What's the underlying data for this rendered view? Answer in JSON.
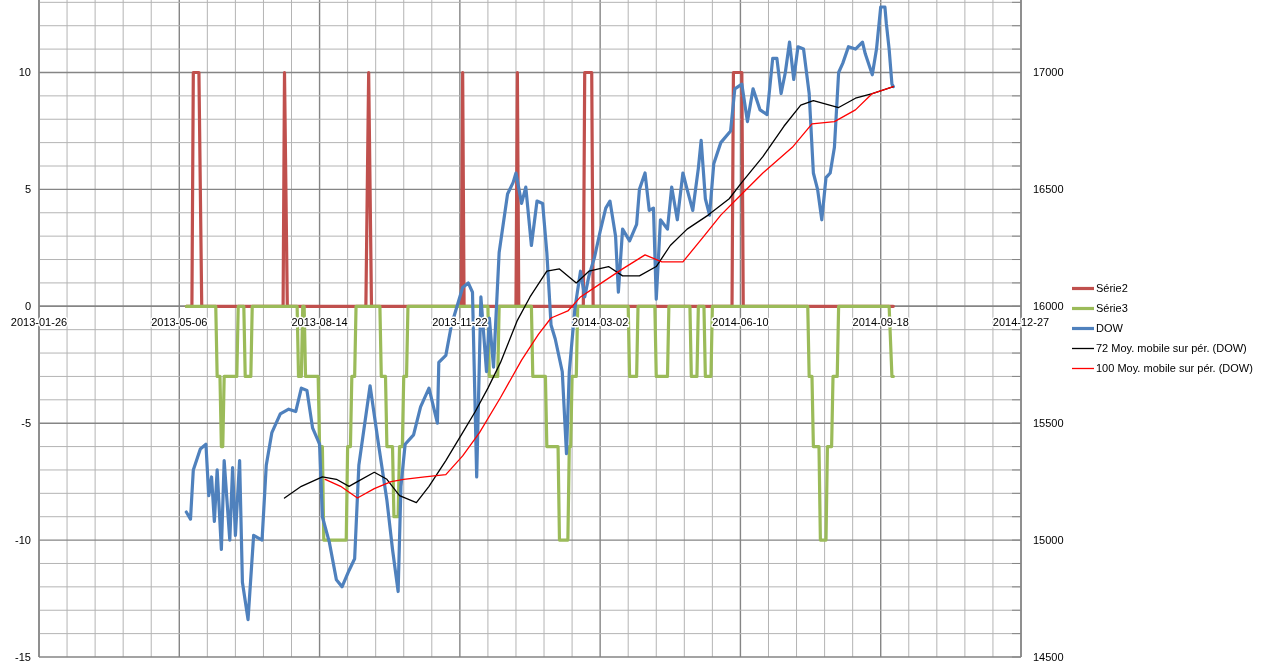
{
  "chart_data": {
    "type": "line",
    "xlim": [
      "2013-01-26",
      "2014-12-27"
    ],
    "xticks": [
      "2013-01-26",
      {
        "value": "2013-02-15",
        "label": null
      },
      {
        "value": "2013-03-07",
        "label": null
      },
      {
        "value": "2013-03-27",
        "label": null
      },
      {
        "value": "2013-04-16",
        "label": null
      },
      "2013-05-06",
      {
        "value": "2013-05-26",
        "label": null
      },
      {
        "value": "2013-06-15",
        "label": null
      },
      {
        "value": "2013-07-05",
        "label": null
      },
      {
        "value": "2013-07-25",
        "label": null
      },
      "2013-08-14",
      {
        "value": "2013-09-03",
        "label": null
      },
      {
        "value": "2013-09-23",
        "label": null
      },
      {
        "value": "2013-10-13",
        "label": null
      },
      {
        "value": "2013-11-02",
        "label": null
      },
      "2013-11-22",
      {
        "value": "2013-12-12",
        "label": null
      },
      {
        "value": "2014-01-01",
        "label": null
      },
      {
        "value": "2014-01-21",
        "label": null
      },
      {
        "value": "2014-02-10",
        "label": null
      },
      "2014-03-02",
      {
        "value": "2014-03-22",
        "label": null
      },
      {
        "value": "2014-04-11",
        "label": null
      },
      {
        "value": "2014-05-01",
        "label": null
      },
      {
        "value": "2014-05-21",
        "label": null
      },
      "2014-06-10",
      {
        "value": "2014-06-30",
        "label": null
      },
      {
        "value": "2014-07-20",
        "label": null
      },
      {
        "value": "2014-08-09",
        "label": null
      },
      {
        "value": "2014-08-29",
        "label": null
      },
      "2014-09-18",
      {
        "value": "2014-10-08",
        "label": null
      },
      {
        "value": "2014-10-28",
        "label": null
      },
      {
        "value": "2014-11-17",
        "label": null
      },
      {
        "value": "2014-12-07",
        "label": null
      },
      "2014-12-27"
    ],
    "ylim": [
      -15,
      13.1
    ],
    "yticks": [
      -15,
      {
        "value": -14,
        "label": null
      },
      {
        "value": -13,
        "label": null
      },
      {
        "value": -12,
        "label": null
      },
      {
        "value": -11,
        "label": null
      },
      -10,
      {
        "value": -9,
        "label": null
      },
      {
        "value": -8,
        "label": null
      },
      {
        "value": -7,
        "label": null
      },
      {
        "value": -6,
        "label": null
      },
      -5,
      {
        "value": -4,
        "label": null
      },
      {
        "value": -3,
        "label": null
      },
      {
        "value": -2,
        "label": null
      },
      {
        "value": -1,
        "label": null
      },
      0,
      {
        "value": 1,
        "label": null
      },
      {
        "value": 2,
        "label": null
      },
      {
        "value": 3,
        "label": null
      },
      {
        "value": 4,
        "label": null
      },
      5,
      {
        "value": 6,
        "label": null
      },
      {
        "value": 7,
        "label": null
      },
      {
        "value": 8,
        "label": null
      },
      {
        "value": 9,
        "label": null
      },
      10,
      {
        "value": 11,
        "label": null
      },
      {
        "value": 12,
        "label": null
      },
      {
        "value": 13,
        "label": null
      }
    ],
    "y2lim": [
      14500,
      17310
    ],
    "y2ticks": [
      14500,
      {
        "value": 14600,
        "label": null
      },
      {
        "value": 14700,
        "label": null
      },
      {
        "value": 14800,
        "label": null
      },
      {
        "value": 14900,
        "label": null
      },
      15000,
      {
        "value": 15100,
        "label": null
      },
      {
        "value": 15200,
        "label": null
      },
      {
        "value": 15300,
        "label": null
      },
      {
        "value": 15400,
        "label": null
      },
      15500,
      {
        "value": 15600,
        "label": null
      },
      {
        "value": 15700,
        "label": null
      },
      {
        "value": 15800,
        "label": null
      },
      {
        "value": 15900,
        "label": null
      },
      16000,
      {
        "value": 16100,
        "label": null
      },
      {
        "value": 16200,
        "label": null
      },
      {
        "value": 16300,
        "label": null
      },
      {
        "value": 16400,
        "label": null
      },
      16500,
      {
        "value": 16600,
        "label": null
      },
      {
        "value": 16700,
        "label": null
      },
      {
        "value": 16800,
        "label": null
      },
      {
        "value": 16900,
        "label": null
      },
      17000,
      {
        "value": 17100,
        "label": null
      },
      {
        "value": 17200,
        "label": null
      },
      {
        "value": 17300,
        "label": null
      }
    ],
    "grid": true,
    "legend": "right",
    "series": [
      {
        "name": "Série2",
        "color": "#c0504d",
        "x": [
          "2013-05-11",
          "2013-05-15",
          "2013-05-16",
          "2013-05-20",
          "2013-05-22",
          "2013-07-19",
          "2013-07-20",
          "2013-07-22",
          "2013-09-16",
          "2013-09-18",
          "2013-09-20",
          "2013-11-23",
          "2013-11-24",
          "2013-11-25",
          "2014-01-01",
          "2014-01-02",
          "2014-01-03",
          "2014-02-18",
          "2014-02-19",
          "2014-02-24",
          "2014-02-25",
          "2014-06-04",
          "2014-06-05",
          "2014-06-11",
          "2014-06-12",
          "2014-09-27"
        ],
        "values": [
          0,
          0,
          10,
          10,
          0,
          0,
          10,
          0,
          0,
          10,
          0,
          0,
          10,
          0,
          0,
          10,
          0,
          0,
          10,
          10,
          0,
          0,
          10,
          10,
          0,
          0
        ]
      },
      {
        "name": "Série3",
        "color": "#9bbb59",
        "x": [
          "2013-05-11",
          "2013-06-01",
          "2013-06-02",
          "2013-06-04",
          "2013-06-05",
          "2013-06-06",
          "2013-06-07",
          "2013-06-16",
          "2013-06-17",
          "2013-06-21",
          "2013-06-22",
          "2013-06-26",
          "2013-06-27",
          "2013-07-29",
          "2013-07-30",
          "2013-08-01",
          "2013-08-02",
          "2013-08-03",
          "2013-08-04",
          "2013-08-13",
          "2013-08-14",
          "2013-08-16",
          "2013-08-17",
          "2013-09-02",
          "2013-09-03",
          "2013-09-05",
          "2013-09-06",
          "2013-09-08",
          "2013-09-09",
          "2013-09-26",
          "2013-09-27",
          "2013-09-30",
          "2013-10-01",
          "2013-10-05",
          "2013-10-06",
          "2013-10-09",
          "2013-10-10",
          "2013-10-12",
          "2013-10-13",
          "2013-10-15",
          "2013-10-16",
          "2013-12-12",
          "2013-12-13",
          "2013-12-19",
          "2013-12-20",
          "2014-01-12",
          "2014-01-13",
          "2014-01-22",
          "2014-01-23",
          "2014-01-31",
          "2014-02-01",
          "2014-02-07",
          "2014-02-08",
          "2014-02-09",
          "2014-02-10",
          "2014-02-13",
          "2014-02-14",
          "2014-03-22",
          "2014-03-23",
          "2014-03-28",
          "2014-03-29",
          "2014-04-10",
          "2014-04-11",
          "2014-04-19",
          "2014-04-20",
          "2014-05-05",
          "2014-05-06",
          "2014-05-10",
          "2014-05-11",
          "2014-05-15",
          "2014-05-16",
          "2014-05-20",
          "2014-05-21",
          "2014-07-28",
          "2014-07-29",
          "2014-07-31",
          "2014-08-01",
          "2014-08-05",
          "2014-08-06",
          "2014-08-10",
          "2014-08-11",
          "2014-08-14",
          "2014-08-15",
          "2014-08-18",
          "2014-08-19",
          "2014-09-24",
          "2014-09-26",
          "2014-09-27"
        ],
        "values": [
          0,
          0,
          -3,
          -3,
          -6,
          -6,
          -3,
          -3,
          0,
          0,
          -3,
          -3,
          0,
          0,
          -3,
          -3,
          0,
          0,
          -3,
          -3,
          -6,
          -6,
          -10,
          -10,
          -6,
          -6,
          -3,
          -3,
          0,
          0,
          -3,
          -3,
          -6,
          -6,
          -9,
          -9,
          -6,
          -6,
          -3,
          -3,
          0,
          0,
          -3,
          -3,
          0,
          0,
          -3,
          -3,
          -6,
          -6,
          -10,
          -10,
          -6,
          -6,
          -3,
          -3,
          0,
          0,
          -3,
          -3,
          0,
          0,
          -3,
          -3,
          0,
          0,
          -3,
          -3,
          0,
          0,
          -3,
          -3,
          0,
          0,
          -3,
          -3,
          -6,
          -6,
          -10,
          -10,
          -6,
          -6,
          -3,
          -3,
          0,
          0,
          -3,
          -3
        ]
      },
      {
        "name": "DOW",
        "color": "#4f81bd",
        "axis": "y2",
        "x": [
          "2013-05-11",
          "2013-05-14",
          "2013-05-16",
          "2013-05-21",
          "2013-05-25",
          "2013-05-27",
          "2013-05-29",
          "2013-05-31",
          "2013-06-02",
          "2013-06-05",
          "2013-06-07",
          "2013-06-11",
          "2013-06-13",
          "2013-06-15",
          "2013-06-18",
          "2013-06-20",
          "2013-06-24",
          "2013-06-28",
          "2013-07-04",
          "2013-07-07",
          "2013-07-11",
          "2013-07-17",
          "2013-07-23",
          "2013-07-28",
          "2013-08-01",
          "2013-08-05",
          "2013-08-09",
          "2013-08-14",
          "2013-08-16",
          "2013-08-21",
          "2013-08-26",
          "2013-08-30",
          "2013-09-04",
          "2013-09-08",
          "2013-09-11",
          "2013-09-19",
          "2013-09-25",
          "2013-10-01",
          "2013-10-05",
          "2013-10-09",
          "2013-10-11",
          "2013-10-14",
          "2013-10-20",
          "2013-10-25",
          "2013-10-31",
          "2013-11-06",
          "2013-11-07",
          "2013-11-12",
          "2013-11-16",
          "2013-11-24",
          "2013-11-28",
          "2013-12-01",
          "2013-12-04",
          "2013-12-07",
          "2013-12-11",
          "2013-12-13",
          "2013-12-16",
          "2013-12-20",
          "2013-12-26",
          "2013-12-30",
          "2014-01-01",
          "2014-01-05",
          "2014-01-08",
          "2014-01-12",
          "2014-01-16",
          "2014-01-20",
          "2014-01-23",
          "2014-01-26",
          "2014-01-29",
          "2014-02-03",
          "2014-02-06",
          "2014-02-08",
          "2014-02-12",
          "2014-02-16",
          "2014-02-19",
          "2014-02-22",
          "2014-02-26",
          "2014-03-02",
          "2014-03-06",
          "2014-03-09",
          "2014-03-13",
          "2014-03-15",
          "2014-03-18",
          "2014-03-23",
          "2014-03-28",
          "2014-03-30",
          "2014-04-03",
          "2014-04-06",
          "2014-04-09",
          "2014-04-11",
          "2014-04-14",
          "2014-04-19",
          "2014-04-22",
          "2014-04-26",
          "2014-04-30",
          "2014-05-03",
          "2014-05-07",
          "2014-05-11",
          "2014-05-13",
          "2014-05-16",
          "2014-05-19",
          "2014-05-22",
          "2014-05-27",
          "2014-06-03",
          "2014-06-06",
          "2014-06-11",
          "2014-06-15",
          "2014-06-19",
          "2014-06-24",
          "2014-06-29",
          "2014-07-03",
          "2014-07-06",
          "2014-07-09",
          "2014-07-12",
          "2014-07-15",
          "2014-07-18",
          "2014-07-21",
          "2014-07-25",
          "2014-07-29",
          "2014-08-01",
          "2014-08-04",
          "2014-08-07",
          "2014-08-10",
          "2014-08-13",
          "2014-08-16",
          "2014-08-19",
          "2014-08-22",
          "2014-08-26",
          "2014-08-31",
          "2014-09-05",
          "2014-09-07",
          "2014-09-12",
          "2014-09-15",
          "2014-09-18",
          "2014-09-21",
          "2014-09-22",
          "2014-09-24",
          "2014-09-26",
          "2014-09-27"
        ],
        "values": [
          15120,
          15090,
          15300,
          15390,
          15410,
          15190,
          15270,
          15080,
          15300,
          14960,
          15340,
          15000,
          15310,
          15020,
          15340,
          14820,
          14660,
          15020,
          15000,
          15320,
          15460,
          15540,
          15560,
          15550,
          15650,
          15640,
          15480,
          15410,
          15100,
          14990,
          14830,
          14800,
          14870,
          14920,
          15320,
          15660,
          15410,
          15170,
          14960,
          14780,
          15230,
          15410,
          15450,
          15570,
          15650,
          15500,
          15760,
          15790,
          15920,
          16080,
          16100,
          16060,
          15270,
          16040,
          15720,
          15950,
          15740,
          16230,
          16480,
          16530,
          16570,
          16440,
          16510,
          16260,
          16450,
          16440,
          16230,
          15920,
          15860,
          15720,
          15370,
          15720,
          15990,
          16150,
          16040,
          16130,
          16210,
          16320,
          16420,
          16450,
          16300,
          16060,
          16330,
          16280,
          16350,
          16500,
          16570,
          16410,
          16420,
          16030,
          16370,
          16330,
          16510,
          16370,
          16570,
          16500,
          16410,
          16590,
          16710,
          16460,
          16390,
          16610,
          16700,
          16750,
          16930,
          16950,
          16790,
          16930,
          16840,
          16820,
          17060,
          17060,
          16910,
          17000,
          17130,
          16970,
          17110,
          17100,
          16910,
          16570,
          16500,
          16370,
          16550,
          16570,
          16680,
          17000,
          17040,
          17110,
          17100,
          17130,
          17080,
          16990,
          17100,
          17280,
          17280,
          17210,
          17100,
          16950,
          16940
        ]
      },
      {
        "name": "72 Moy. mobile sur pér. (DOW)",
        "color": "#000000",
        "axis": "y2",
        "x": [
          "2013-07-20",
          "2013-08-01",
          "2013-08-16",
          "2013-08-26",
          "2013-09-04",
          "2013-09-10",
          "2013-09-22",
          "2013-10-01",
          "2013-10-10",
          "2013-10-22",
          "2013-10-31",
          "2013-11-12",
          "2013-11-24",
          "2013-12-03",
          "2013-12-12",
          "2013-12-21",
          "2014-01-02",
          "2014-01-11",
          "2014-01-23",
          "2014-02-01",
          "2014-02-13",
          "2014-02-22",
          "2014-03-08",
          "2014-03-18",
          "2014-03-30",
          "2014-04-11",
          "2014-04-21",
          "2014-05-03",
          "2014-05-18",
          "2014-06-02",
          "2014-06-11",
          "2014-06-26",
          "2014-07-11",
          "2014-07-23",
          "2014-08-01",
          "2014-08-19",
          "2014-08-31",
          "2014-09-12",
          "2014-09-27"
        ],
        "values": [
          15180,
          15230,
          15270,
          15260,
          15230,
          15250,
          15290,
          15260,
          15190,
          15160,
          15230,
          15340,
          15460,
          15550,
          15650,
          15760,
          15940,
          16040,
          16150,
          16160,
          16100,
          16150,
          16170,
          16130,
          16130,
          16170,
          16260,
          16330,
          16390,
          16460,
          16530,
          16640,
          16770,
          16860,
          16880,
          16850,
          16890,
          16910,
          16940
        ]
      },
      {
        "name": "100 Moy. mobile sur pér. (DOW)",
        "color": "#ff0000",
        "axis": "y2",
        "x": [
          "2013-08-18",
          "2013-08-29",
          "2013-09-10",
          "2013-09-22",
          "2013-10-04",
          "2013-10-13",
          "2013-10-28",
          "2013-11-12",
          "2013-11-24",
          "2013-12-06",
          "2013-12-21",
          "2014-01-05",
          "2014-01-17",
          "2014-01-26",
          "2014-02-07",
          "2014-02-16",
          "2014-03-03",
          "2014-03-18",
          "2014-04-03",
          "2014-04-15",
          "2014-04-30",
          "2014-05-15",
          "2014-05-27",
          "2014-06-11",
          "2014-06-26",
          "2014-07-17",
          "2014-07-31",
          "2014-08-16",
          "2014-08-31",
          "2014-09-12",
          "2014-09-27"
        ],
        "values": [
          15260,
          15230,
          15180,
          15220,
          15250,
          15260,
          15270,
          15280,
          15360,
          15460,
          15610,
          15770,
          15880,
          15950,
          15980,
          16040,
          16100,
          16160,
          16220,
          16190,
          16190,
          16300,
          16390,
          16480,
          16570,
          16680,
          16780,
          16790,
          16840,
          16910,
          16940
        ]
      }
    ]
  }
}
